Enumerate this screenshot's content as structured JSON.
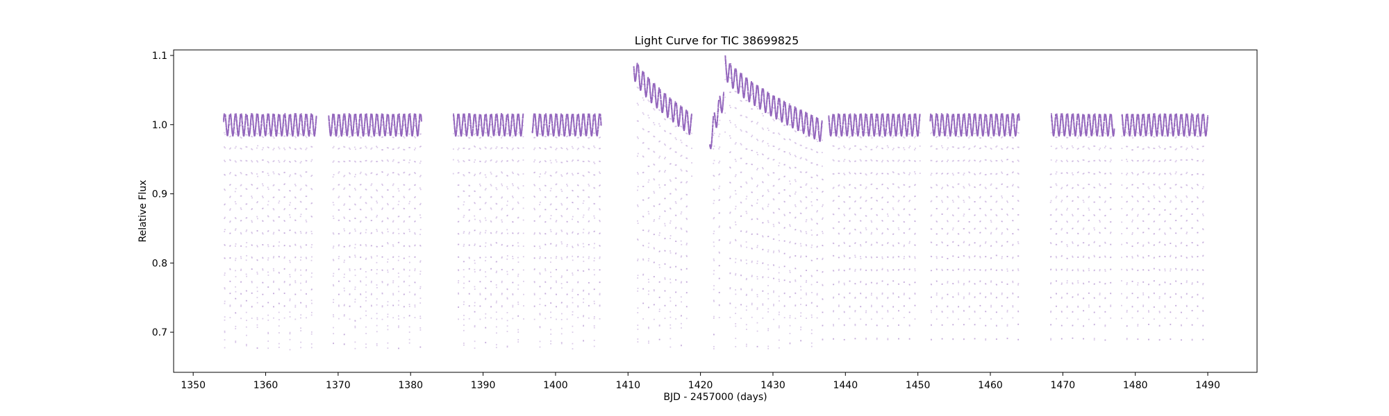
{
  "chart_data": {
    "type": "scatter",
    "title": "Light Curve for TIC 38699825",
    "xlabel": "BJD - 2457000 (days)",
    "ylabel": "Relative Flux",
    "xlim": [
      1347.3,
      1496.8
    ],
    "ylim": [
      0.642,
      1.108
    ],
    "xticks": [
      1350,
      1360,
      1370,
      1380,
      1390,
      1400,
      1410,
      1420,
      1430,
      1440,
      1450,
      1460,
      1470,
      1480,
      1490
    ],
    "yticks": [
      0.7,
      0.8,
      0.9,
      1.0,
      1.1
    ],
    "grid": false,
    "legend": "none",
    "marker_color": "#9467bd",
    "series": [
      {
        "period_days": 1.5,
        "oot_flux_range": [
          0.985,
          1.017
        ],
        "primary_eclipse_depth": [
          0.665,
          0.68
        ],
        "secondary_eclipse_depth": 0.72,
        "segments": [
          {
            "x_start": 1354.2,
            "x_end": 1367.0
          },
          {
            "x_start": 1368.7,
            "x_end": 1381.5
          },
          {
            "x_start": 1385.9,
            "x_end": 1395.6
          },
          {
            "x_start": 1396.8,
            "x_end": 1406.3
          },
          {
            "x_start": 1410.8,
            "x_end": 1418.8,
            "flux_start": 1.085,
            "flux_end": 1.0
          },
          {
            "x_start": 1421.3,
            "x_end": 1423.2,
            "flux_start": 0.97,
            "flux_end": 1.04
          },
          {
            "x_start": 1423.4,
            "x_end": 1436.9,
            "flux_start": 1.085,
            "flux_end": 0.99
          },
          {
            "x_start": 1437.7,
            "x_end": 1450.3
          },
          {
            "x_start": 1451.7,
            "x_end": 1464.0
          },
          {
            "x_start": 1468.3,
            "x_end": 1477.1
          },
          {
            "x_start": 1478.1,
            "x_end": 1490.0
          }
        ]
      }
    ]
  }
}
